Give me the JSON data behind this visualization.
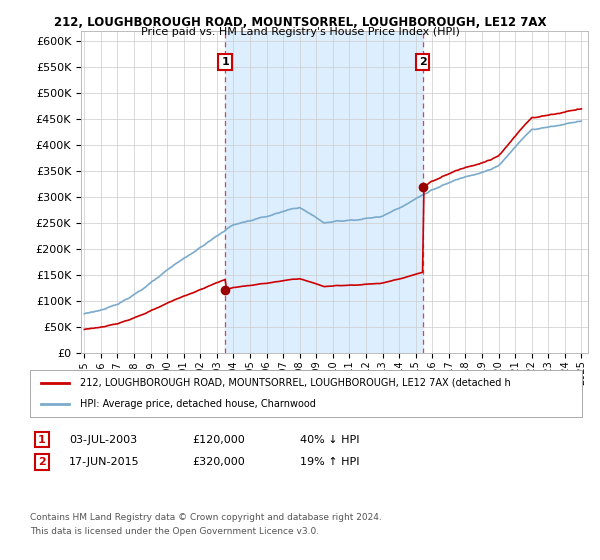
{
  "title": "212, LOUGHBOROUGH ROAD, MOUNTSORREL, LOUGHBOROUGH, LE12 7AX",
  "subtitle": "Price paid vs. HM Land Registry's House Price Index (HPI)",
  "ylim": [
    0,
    620000
  ],
  "yticks": [
    0,
    50000,
    100000,
    150000,
    200000,
    250000,
    300000,
    350000,
    400000,
    450000,
    500000,
    550000,
    600000
  ],
  "sale1_date": "03-JUL-2003",
  "sale1_price": 120000,
  "sale1_hpi": "40% ↓ HPI",
  "sale2_date": "17-JUN-2015",
  "sale2_price": 320000,
  "sale2_hpi": "19% ↑ HPI",
  "legend_property": "212, LOUGHBOROUGH ROAD, MOUNTSORREL, LOUGHBOROUGH, LE12 7AX (detached h",
  "legend_hpi": "HPI: Average price, detached house, Charnwood",
  "footnote1": "Contains HM Land Registry data © Crown copyright and database right 2024.",
  "footnote2": "This data is licensed under the Open Government Licence v3.0.",
  "property_color": "#cc0000",
  "hpi_color": "#7aaacc",
  "sale_marker_color": "#990000",
  "vline_color": "#dd4444",
  "background_color": "#ffffff",
  "grid_color": "#cccccc",
  "shade_color": "#ddeeff"
}
